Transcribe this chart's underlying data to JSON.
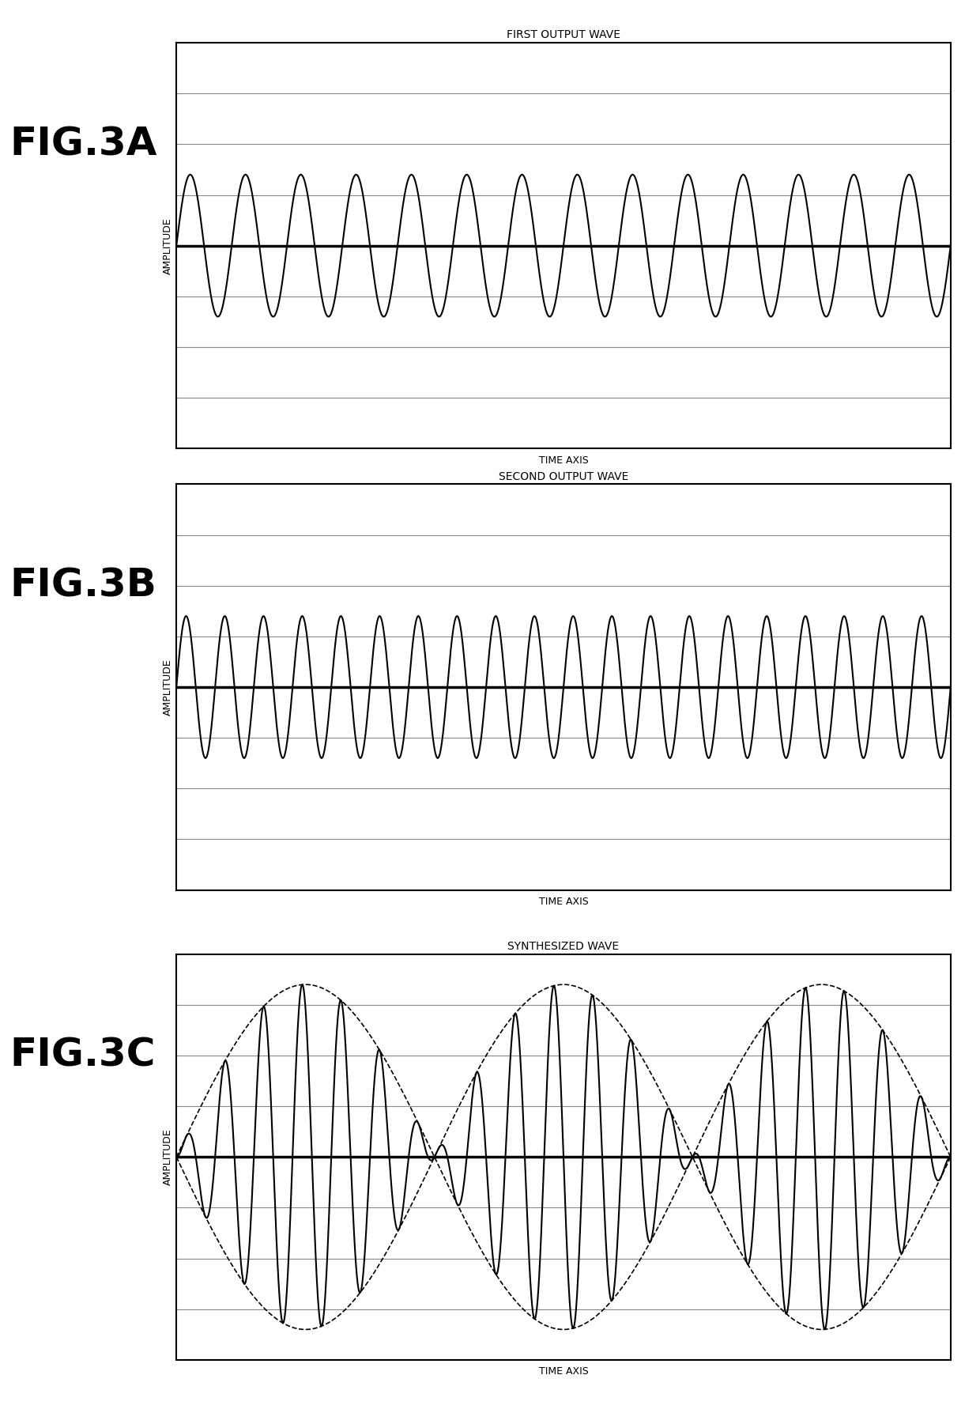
{
  "fig3a_title": "FIRST OUTPUT WAVE",
  "fig3b_title": "SECOND OUTPUT WAVE",
  "fig3c_title": "SYNTHESIZED WAVE",
  "xlabel": "TIME AXIS",
  "ylabel": "AMPLITUDE",
  "fig3a_label": "FIG.3A",
  "fig3b_label": "FIG.3B",
  "fig3c_label": "FIG.3C",
  "wave1_freq": 14,
  "wave1_amp": 0.35,
  "wave2_freq": 20,
  "wave2_amp": 0.35,
  "envelope_freq": 1.5,
  "envelope_amp": 0.85,
  "ylim": [
    -1.0,
    1.0
  ],
  "xlim": [
    0,
    1
  ],
  "grid_lines": [
    -0.75,
    -0.5,
    -0.25,
    0.0,
    0.25,
    0.5,
    0.75
  ],
  "background_color": "#ffffff",
  "wave_color": "#000000",
  "grid_color": "#888888",
  "axis_zero_lw": 2.5,
  "wave_lw": 1.5,
  "title_fontsize": 10,
  "label_fontsize": 9,
  "fig_label_fontsize": 36
}
